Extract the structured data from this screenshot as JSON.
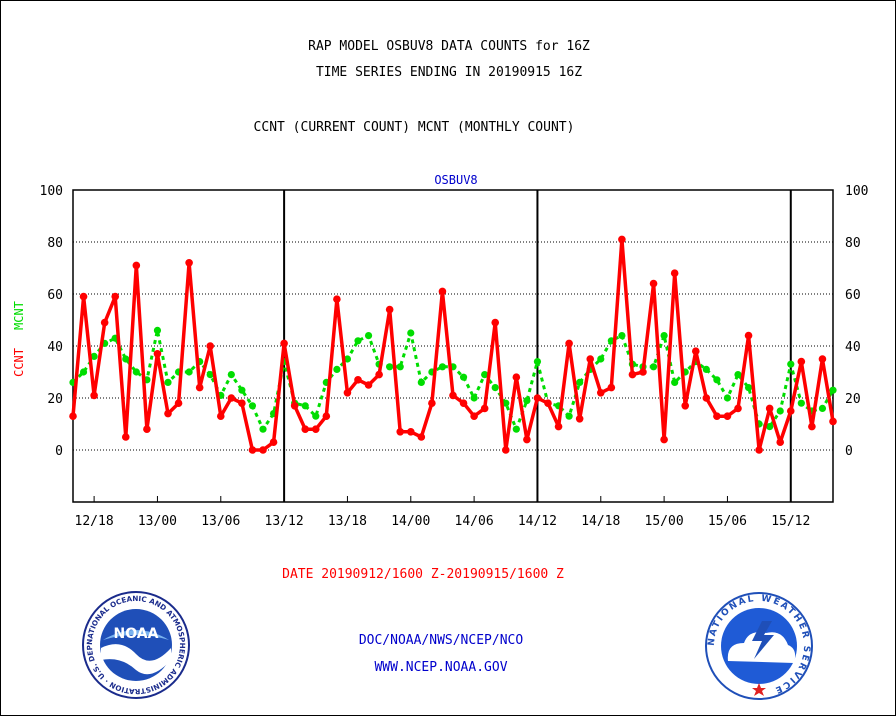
{
  "header": {
    "title_line1": "RAP MODEL OSBUV8 DATA COUNTS for 16Z",
    "title_line2": "TIME SERIES ENDING IN 20190915 16Z",
    "subtitle": "CCNT (CURRENT COUNT) MCNT (MONTHLY COUNT)"
  },
  "footer": {
    "date_range": "DATE 20190912/1600 Z-20190915/1600 Z",
    "agency": "DOC/NOAA/NWS/NCEP/NCO",
    "url": "WWW.NCEP.NOAA.GOV"
  },
  "logos": {
    "noaa_word": "NOAA",
    "noaa_ring_text": "NATIONAL OCEANIC AND ATMOSPHERIC ADMINISTRATION · U.S. DEPARTMENT OF COMMERCE",
    "nws_ring_text": "NATIONAL WEATHER SERVICE"
  },
  "colors": {
    "ccnt": "#ff0000",
    "mcnt": "#00dd00",
    "station_label": "#0000cc",
    "footer_blue": "#0000cc",
    "date_red": "#ff0000"
  },
  "chart_data": {
    "type": "line",
    "title": "OSBUV8",
    "ylabel_left": [
      "CCNT",
      "MCNT"
    ],
    "ylim": [
      -20,
      100
    ],
    "yticks": [
      0,
      20,
      40,
      60,
      80,
      100
    ],
    "grid": true,
    "x_tick_labels": [
      "12/18",
      "13/00",
      "13/06",
      "13/12",
      "13/18",
      "14/00",
      "14/06",
      "14/12",
      "14/18",
      "15/00",
      "15/06",
      "15/12"
    ],
    "day_separators": [
      "13/12",
      "14/12",
      "15/12"
    ],
    "series": [
      {
        "name": "CCNT",
        "values": [
          13,
          59,
          21,
          49,
          59,
          5,
          71,
          8,
          37,
          14,
          18,
          72,
          24,
          40,
          13,
          20,
          18,
          0,
          0,
          3,
          41,
          17,
          8,
          8,
          13,
          58,
          22,
          27,
          25,
          29,
          54,
          7,
          7,
          5,
          18,
          61,
          21,
          18,
          13,
          16,
          49,
          0,
          28,
          4,
          20,
          18,
          9,
          41,
          12,
          35,
          22,
          24,
          81,
          29,
          30,
          64,
          4,
          68,
          17,
          38,
          20,
          13,
          13,
          16,
          44,
          0,
          16,
          3,
          15,
          34,
          9,
          35,
          11
        ]
      },
      {
        "name": "MCNT",
        "values": [
          26,
          30,
          36,
          41,
          43,
          35,
          30,
          27,
          46,
          26,
          30,
          30,
          34,
          29,
          21,
          29,
          23,
          17,
          8,
          14,
          34,
          18,
          17,
          13,
          26,
          31,
          35,
          42,
          44,
          33,
          32,
          32,
          45,
          26,
          30,
          32,
          32,
          28,
          20,
          29,
          24,
          18,
          8,
          19,
          34,
          18,
          17,
          13,
          26,
          31,
          35,
          42,
          44,
          33,
          32,
          32,
          44,
          26,
          30,
          34,
          31,
          27,
          20,
          29,
          24,
          10,
          9,
          15,
          33,
          18,
          15,
          16,
          23
        ]
      }
    ]
  }
}
